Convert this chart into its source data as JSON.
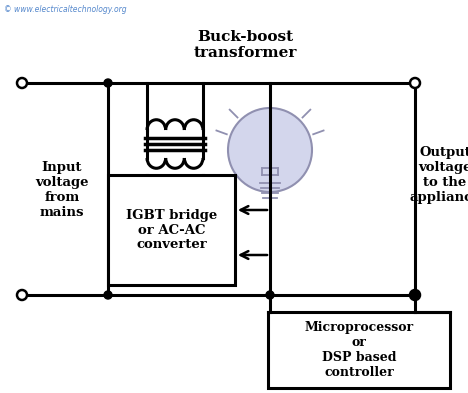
{
  "background_color": "#ffffff",
  "watermark": "© www.electricaltechnology.org",
  "watermark_color": "#5588cc",
  "title_buck_boost": "Buck-boost\ntransformer",
  "label_input": "Input\nvoltage\nfrom\nmains",
  "label_output": "Output\nvoltage\nto the\nappliance",
  "label_igbt": "IGBT bridge\nor AC-AC\nconverter",
  "label_micro": "Microprocessor\nor\nDSP based\ncontroller",
  "line_color": "#000000",
  "bulb_color": "#c8cce8"
}
